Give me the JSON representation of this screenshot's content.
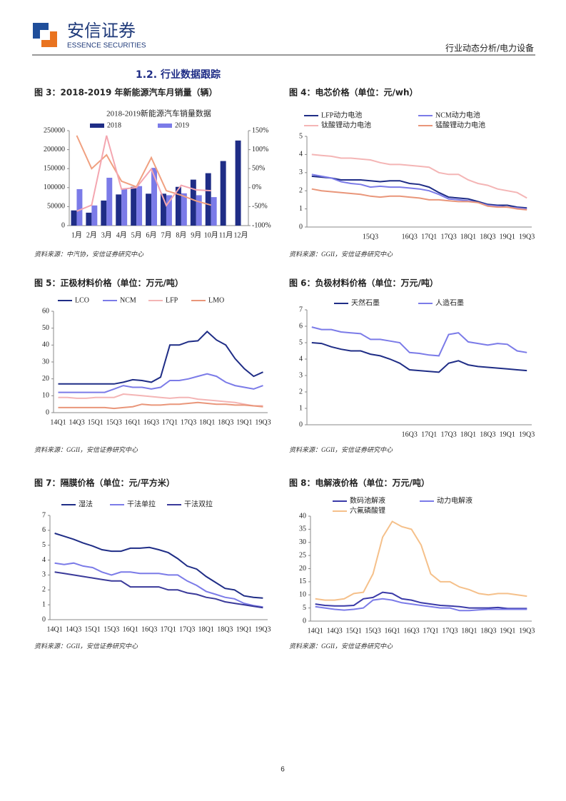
{
  "header": {
    "brand": "安信证券",
    "brand_en": "ESSENCE SECURITIES",
    "report_type": "行业动态分析/电力设备"
  },
  "section_title": "1.2. 行业数据跟踪",
  "chart_data": [
    {
      "type": "bar",
      "caption": "图 3：2018-2019 年新能源汽车月销量（辆）",
      "title": "2018-2019新能源汽车销量数据",
      "categories": [
        "1月",
        "2月",
        "3月",
        "4月",
        "5月",
        "6月",
        "7月",
        "8月",
        "9月",
        "10月",
        "11月",
        "12月"
      ],
      "series": [
        {
          "name": "2018",
          "color": "#1f2d86",
          "values": [
            40000,
            34000,
            66000,
            82000,
            102000,
            84000,
            84000,
            102000,
            121000,
            138000,
            170000,
            224000
          ]
        },
        {
          "name": "2019",
          "color": "#7b7be8",
          "values": [
            96000,
            53000,
            126000,
            97000,
            104000,
            152000,
            80000,
            85000,
            80000,
            75000,
            null,
            null
          ]
        },
        {
          "color": "#f0a080",
          "axis": "y2",
          "values": [
            137,
            50,
            86,
            17,
            2,
            79,
            -8,
            -20,
            -35,
            -46,
            null,
            null
          ]
        },
        {
          "color": "#f4a6b0",
          "axis": "y2",
          "values": [
            -62,
            -46,
            137,
            -4,
            0,
            49,
            -47,
            6,
            -6,
            -8,
            null,
            null
          ]
        }
      ],
      "ylim": [
        0,
        250000
      ],
      "yticks": [
        0,
        50000,
        100000,
        150000,
        200000,
        250000
      ],
      "y2lim": [
        -100,
        150
      ],
      "y2ticks": [
        {
          "value": -100,
          "label": "-100%"
        },
        {
          "value": -50,
          "label": "-50%"
        },
        {
          "value": 0,
          "label": "0%"
        },
        {
          "value": 50,
          "label": "50%"
        },
        {
          "value": 100,
          "label": "100%"
        },
        {
          "value": 150,
          "label": "150%"
        }
      ],
      "source": "资料来源：中汽协，安信证券研究中心"
    },
    {
      "type": "line",
      "caption": "图 4：电芯价格（单位：元/wh）",
      "categories": [
        null,
        null,
        null,
        null,
        null,
        null,
        "15Q3",
        null,
        null,
        null,
        "16Q3",
        null,
        "17Q1",
        null,
        "17Q3",
        null,
        "18Q1",
        null,
        "18Q3",
        null,
        "19Q1",
        null,
        "19Q3"
      ],
      "series": [
        {
          "name": "LFP动力电池",
          "color": "#1f2d86",
          "values": [
            2.8,
            2.75,
            2.7,
            2.6,
            2.6,
            2.6,
            2.55,
            2.5,
            2.55,
            2.55,
            2.4,
            2.35,
            2.2,
            1.9,
            1.65,
            1.6,
            1.55,
            1.4,
            1.25,
            1.2,
            1.2,
            1.1,
            1.05
          ]
        },
        {
          "name": "NCM动力电池",
          "color": "#7b7be8",
          "values": [
            2.9,
            2.8,
            2.7,
            2.5,
            2.4,
            2.35,
            2.2,
            2.25,
            2.2,
            2.2,
            2.15,
            2.1,
            2.0,
            1.8,
            1.55,
            1.5,
            1.45,
            1.35,
            1.2,
            1.15,
            1.1,
            1.05,
            1.0
          ]
        },
        {
          "name": "钛酸锂动力电池",
          "color": "#f4b5b5",
          "values": [
            4.0,
            3.95,
            3.9,
            3.8,
            3.8,
            3.75,
            3.7,
            3.55,
            3.45,
            3.45,
            3.4,
            3.35,
            3.3,
            3.0,
            2.9,
            2.9,
            2.6,
            2.4,
            2.3,
            2.1,
            2.0,
            1.9,
            1.6
          ]
        },
        {
          "name": "锰酸锂动力电池",
          "color": "#e9967a",
          "values": [
            2.1,
            2.0,
            1.95,
            1.9,
            1.85,
            1.8,
            1.7,
            1.65,
            1.7,
            1.7,
            1.65,
            1.6,
            1.5,
            1.5,
            1.45,
            1.4,
            1.4,
            1.35,
            1.15,
            1.1,
            1.1,
            1.0,
            0.95
          ]
        }
      ],
      "ylim": [
        0,
        5
      ],
      "yticks": [
        0,
        1,
        2,
        3,
        4,
        5
      ],
      "source": "资料来源：GGII，安信证券研究中心"
    },
    {
      "type": "line",
      "caption": "图 5：正极材料价格（单位：万元/吨）",
      "categories": [
        "14Q1",
        null,
        "14Q3",
        null,
        "15Q1",
        null,
        "15Q3",
        null,
        "16Q1",
        null,
        "16Q3",
        null,
        "17Q1",
        null,
        "17Q3",
        null,
        "18Q1",
        null,
        "18Q3",
        null,
        "19Q1",
        null,
        "19Q3"
      ],
      "series": [
        {
          "name": "LCO",
          "color": "#1f2d86",
          "values": [
            17,
            17,
            17,
            17,
            17,
            17,
            17,
            18,
            19.5,
            19,
            18,
            21,
            40,
            40,
            42,
            42.5,
            48,
            43,
            40,
            32,
            26,
            21.5,
            24
          ]
        },
        {
          "name": "NCM",
          "color": "#7b7be8",
          "values": [
            12,
            12,
            12,
            12,
            12,
            12,
            14,
            16,
            15,
            15,
            14,
            15,
            19,
            19,
            20,
            21.5,
            23,
            21.5,
            18,
            16,
            15,
            14,
            16
          ]
        },
        {
          "name": "LFP",
          "color": "#f4b5b5",
          "values": [
            9,
            9,
            8.5,
            8.5,
            9,
            9,
            9,
            11,
            10.5,
            10,
            9.5,
            9,
            8.5,
            9,
            9,
            8,
            7.5,
            7,
            6.5,
            6,
            5,
            4,
            4
          ]
        },
        {
          "name": "LMO",
          "color": "#e9967a",
          "values": [
            3,
            3,
            3,
            3,
            3,
            3,
            2.5,
            3,
            3.5,
            5,
            4.5,
            4.5,
            5,
            5,
            5.5,
            6,
            5.5,
            5,
            5,
            4.5,
            4.5,
            4,
            3.5
          ]
        }
      ],
      "ylim": [
        0,
        60
      ],
      "yticks": [
        0,
        10,
        20,
        30,
        40,
        50,
        60
      ],
      "source": "资料来源：GGII，安信证券研究中心"
    },
    {
      "type": "line",
      "caption": "图 6：负极材料价格（单位：万元/吨）",
      "categories": [
        null,
        null,
        null,
        null,
        null,
        null,
        null,
        null,
        null,
        null,
        "16Q3",
        null,
        "17Q1",
        null,
        "17Q3",
        null,
        "18Q1",
        null,
        "18Q3",
        null,
        "19Q1",
        null,
        "19Q3"
      ],
      "series": [
        {
          "name": "天然石墨",
          "color": "#1f2d86",
          "values": [
            5.0,
            4.95,
            4.75,
            4.6,
            4.5,
            4.5,
            4.3,
            4.2,
            4.0,
            3.75,
            3.35,
            3.3,
            3.25,
            3.2,
            3.75,
            3.9,
            3.65,
            3.55,
            3.5,
            3.45,
            3.4,
            3.35,
            3.3
          ]
        },
        {
          "name": "人造石墨",
          "color": "#7b7be8",
          "values": [
            5.95,
            5.8,
            5.8,
            5.65,
            5.6,
            5.55,
            5.2,
            5.2,
            5.1,
            5.0,
            4.4,
            4.35,
            4.25,
            4.2,
            5.5,
            5.6,
            5.05,
            4.95,
            4.85,
            4.95,
            4.9,
            4.5,
            4.4
          ]
        }
      ],
      "ylim": [
        0,
        7
      ],
      "yticks": [
        0,
        1,
        2,
        3,
        4,
        5,
        6,
        7
      ],
      "source": "资料来源：GGII，安信证券研究中心"
    },
    {
      "type": "line",
      "caption": "图 7：隔膜价格（单位：元/平方米）",
      "categories": [
        "14Q1",
        null,
        "14Q3",
        null,
        "15Q1",
        null,
        "15Q3",
        null,
        "16Q1",
        null,
        "16Q3",
        null,
        "17Q1",
        null,
        "17Q3",
        null,
        "18Q1",
        null,
        "18Q3",
        null,
        "19Q1",
        null,
        "19Q3"
      ],
      "series": [
        {
          "name": "湿法",
          "color": "#1f2d86",
          "values": [
            5.8,
            5.6,
            5.4,
            5.15,
            4.95,
            4.7,
            4.6,
            4.6,
            4.8,
            4.8,
            4.85,
            4.7,
            4.5,
            4.1,
            3.6,
            3.4,
            2.9,
            2.5,
            2.1,
            2.0,
            1.6,
            1.5,
            1.45
          ]
        },
        {
          "name": "干法单拉",
          "color": "#7b7be8",
          "values": [
            3.8,
            3.7,
            3.8,
            3.6,
            3.5,
            3.2,
            3.0,
            3.2,
            3.2,
            3.1,
            3.1,
            3.1,
            3.0,
            3.0,
            2.6,
            2.3,
            1.9,
            1.7,
            1.5,
            1.4,
            1.1,
            0.95,
            0.85
          ]
        },
        {
          "name": "干法双拉",
          "color": "#3a3a9a",
          "values": [
            3.2,
            3.1,
            3.0,
            2.9,
            2.8,
            2.7,
            2.6,
            2.6,
            2.2,
            2.2,
            2.2,
            2.2,
            2.0,
            2.0,
            1.8,
            1.7,
            1.5,
            1.4,
            1.2,
            1.1,
            1.0,
            0.9,
            0.8
          ]
        }
      ],
      "ylim": [
        0,
        7
      ],
      "yticks": [
        0,
        1,
        2,
        3,
        4,
        5,
        6,
        7
      ],
      "source": "资料来源：GGII，安信证券研究中心"
    },
    {
      "type": "line",
      "caption": "图 8：电解液价格（单位：万元/吨）",
      "categories": [
        "14Q1",
        null,
        "14Q3",
        null,
        "15Q1",
        null,
        "15Q3",
        null,
        "16Q1",
        null,
        "16Q3",
        null,
        "17Q1",
        null,
        "17Q3",
        null,
        "18Q1",
        null,
        "18Q3",
        null,
        "19Q1",
        null,
        "19Q3"
      ],
      "series": [
        {
          "name": "数码池解液",
          "color": "#3a3aa8",
          "values": [
            6.5,
            6,
            5.8,
            5.8,
            6,
            8.5,
            9,
            11,
            10.5,
            8.5,
            8,
            7,
            6.5,
            6,
            5.8,
            5.5,
            5,
            5,
            5,
            5.2,
            4.8,
            4.8,
            4.8
          ]
        },
        {
          "name": "动力电解液",
          "color": "#7b7be8",
          "values": [
            5.5,
            5,
            4.5,
            4.2,
            4.5,
            5,
            8,
            8.5,
            8,
            7,
            6.5,
            6,
            5.5,
            5,
            5,
            4,
            4,
            4.3,
            4.5,
            4.5,
            4.5,
            4.5,
            4.5
          ]
        },
        {
          "name": "六氟磷酸锂",
          "color": "#f5c08a",
          "values": [
            8.5,
            8,
            8,
            8.5,
            10.5,
            11,
            18,
            32,
            38,
            36,
            35,
            29,
            18,
            15,
            15,
            13,
            12,
            10.5,
            10,
            10.5,
            10.5,
            10,
            9.5
          ]
        }
      ],
      "ylim": [
        0,
        40
      ],
      "yticks": [
        0,
        5,
        10,
        15,
        20,
        25,
        30,
        35,
        40
      ],
      "source": "资料来源：GGII，安信证券研究中心"
    }
  ],
  "page_number": "6"
}
